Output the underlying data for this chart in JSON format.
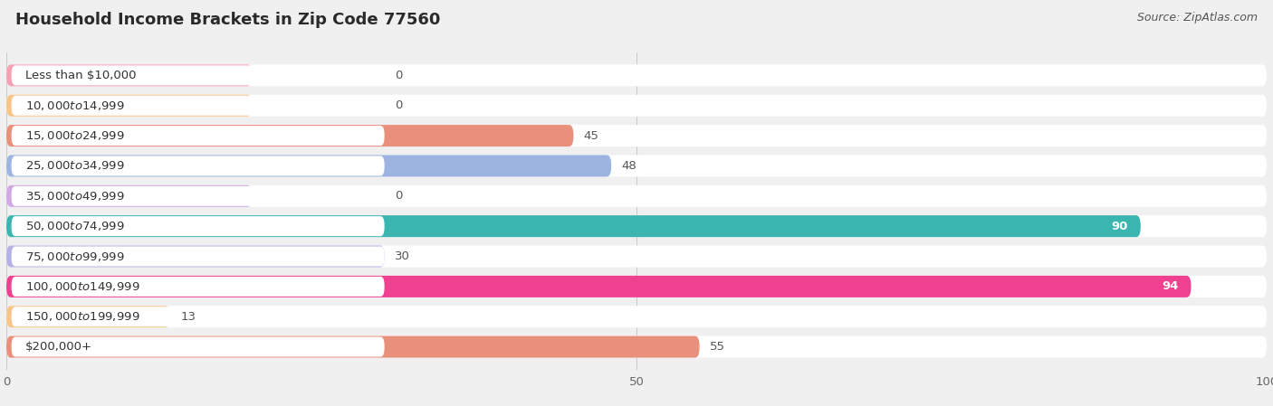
{
  "title": "Household Income Brackets in Zip Code 77560",
  "source": "Source: ZipAtlas.com",
  "categories": [
    "Less than $10,000",
    "$10,000 to $14,999",
    "$15,000 to $24,999",
    "$25,000 to $34,999",
    "$35,000 to $49,999",
    "$50,000 to $74,999",
    "$75,000 to $99,999",
    "$100,000 to $149,999",
    "$150,000 to $199,999",
    "$200,000+"
  ],
  "values": [
    0,
    0,
    45,
    48,
    0,
    90,
    30,
    94,
    13,
    55
  ],
  "bar_colors": [
    "#f4a0b4",
    "#f7c48a",
    "#e8907c",
    "#9db4e0",
    "#d0a8e4",
    "#3ab5b0",
    "#b4b0e4",
    "#f04090",
    "#f7c48a",
    "#e8907c"
  ],
  "background_color": "#f0f0f0",
  "bar_bg_color": "#ffffff",
  "row_bg_color": "#e8e8e8",
  "xlim": [
    0,
    100
  ],
  "xticks": [
    0,
    50,
    100
  ],
  "title_fontsize": 13,
  "label_fontsize": 9.5,
  "value_fontsize": 9.5,
  "source_fontsize": 9
}
